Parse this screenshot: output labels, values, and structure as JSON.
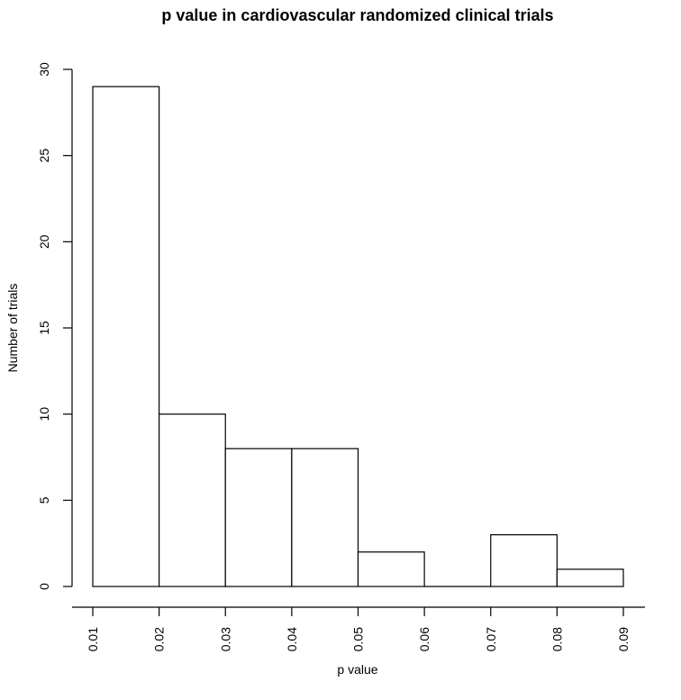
{
  "chart_data": {
    "type": "bar",
    "title": "p value in cardiovascular randomized clinical trials",
    "xlabel": "p value",
    "ylabel": "Number of trials",
    "bins": [
      {
        "from": 0.01,
        "to": 0.02,
        "count": 29
      },
      {
        "from": 0.02,
        "to": 0.03,
        "count": 10
      },
      {
        "from": 0.03,
        "to": 0.04,
        "count": 8
      },
      {
        "from": 0.04,
        "to": 0.05,
        "count": 8
      },
      {
        "from": 0.05,
        "to": 0.06,
        "count": 2
      },
      {
        "from": 0.06,
        "to": 0.07,
        "count": 0
      },
      {
        "from": 0.07,
        "to": 0.08,
        "count": 3
      },
      {
        "from": 0.08,
        "to": 0.09,
        "count": 1
      }
    ],
    "values": [
      29,
      10,
      8,
      8,
      2,
      0,
      3,
      1
    ],
    "xlim": [
      0.01,
      0.09
    ],
    "ylim": [
      0,
      30
    ],
    "x_ticks": [
      "0.01",
      "0.02",
      "0.03",
      "0.04",
      "0.05",
      "0.06",
      "0.07",
      "0.08",
      "0.09"
    ],
    "y_ticks": [
      "0",
      "5",
      "10",
      "15",
      "20",
      "25",
      "30"
    ],
    "grid": false,
    "legend": "none",
    "bar_fill": "#ffffff",
    "bar_stroke": "#000000"
  }
}
